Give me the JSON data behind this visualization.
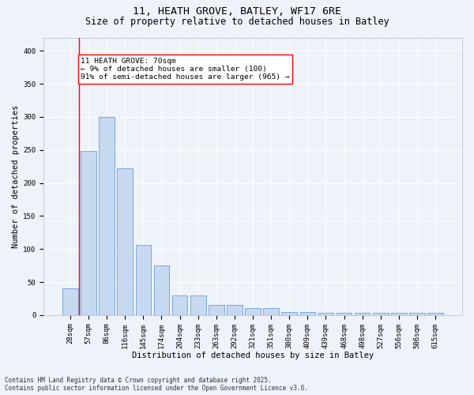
{
  "title_line1": "11, HEATH GROVE, BATLEY, WF17 6RE",
  "title_line2": "Size of property relative to detached houses in Batley",
  "xlabel": "Distribution of detached houses by size in Batley",
  "ylabel": "Number of detached properties",
  "categories": [
    "28sqm",
    "57sqm",
    "86sqm",
    "116sqm",
    "145sqm",
    "174sqm",
    "204sqm",
    "233sqm",
    "263sqm",
    "292sqm",
    "321sqm",
    "351sqm",
    "380sqm",
    "409sqm",
    "439sqm",
    "468sqm",
    "498sqm",
    "527sqm",
    "556sqm",
    "586sqm",
    "615sqm"
  ],
  "values": [
    40,
    248,
    300,
    222,
    106,
    75,
    30,
    30,
    15,
    15,
    10,
    10,
    5,
    5,
    3,
    3,
    3,
    3,
    3,
    3,
    3
  ],
  "bar_color": "#c6d9f1",
  "bar_edge_color": "#6a9fd8",
  "red_line_index": 1,
  "annotation_line1": "11 HEATH GROVE: 70sqm",
  "annotation_line2": "← 9% of detached houses are smaller (100)",
  "annotation_line3": "91% of semi-detached houses are larger (965) →",
  "background_color": "#eef2f9",
  "grid_color": "#ffffff",
  "ylim": [
    0,
    420
  ],
  "yticks": [
    0,
    50,
    100,
    150,
    200,
    250,
    300,
    350,
    400
  ],
  "footer_line1": "Contains HM Land Registry data © Crown copyright and database right 2025.",
  "footer_line2": "Contains public sector information licensed under the Open Government Licence v3.0.",
  "title_fontsize": 9.5,
  "subtitle_fontsize": 8.5,
  "axis_label_fontsize": 7.5,
  "tick_fontsize": 6.5,
  "annotation_fontsize": 6.8,
  "footer_fontsize": 5.5
}
